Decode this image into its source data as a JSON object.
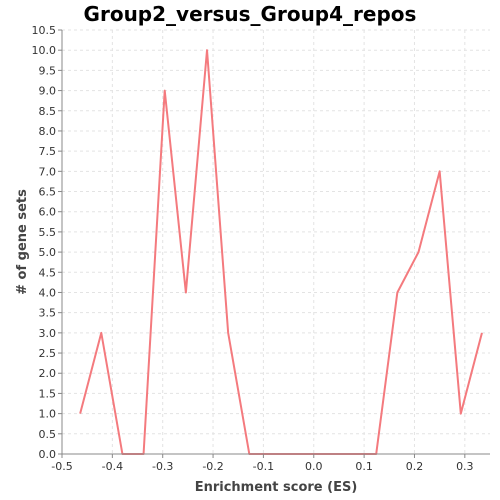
{
  "chart_data": {
    "type": "line",
    "title": "Group2_versus_Group4_repos",
    "xlabel": "Enrichment score (ES)",
    "ylabel": "# of gene sets",
    "xlim": [
      -0.5,
      0.35
    ],
    "ylim": [
      0.0,
      10.5
    ],
    "x_ticks": [
      "-0.5",
      "-0.4",
      "-0.3",
      "-0.2",
      "-0.1",
      "0.0",
      "0.1",
      "0.2",
      "0.3"
    ],
    "y_ticks": [
      "0.0",
      "0.5",
      "1.0",
      "1.5",
      "2.0",
      "2.5",
      "3.0",
      "3.5",
      "4.0",
      "4.5",
      "5.0",
      "5.5",
      "6.0",
      "6.5",
      "7.0",
      "7.5",
      "8.0",
      "8.5",
      "9.0",
      "9.5",
      "10.0",
      "10.5"
    ],
    "grid": true,
    "series": [
      {
        "color": "#f47a7e",
        "x": [
          -0.464,
          -0.422,
          -0.38,
          -0.338,
          -0.296,
          -0.254,
          -0.212,
          -0.17,
          -0.128,
          -0.086,
          -0.044,
          -0.002,
          0.04,
          0.082,
          0.124,
          0.166,
          0.208,
          0.25,
          0.292,
          0.334
        ],
        "y": [
          1,
          3,
          0,
          0,
          9,
          4,
          10,
          3,
          0,
          0,
          0,
          0,
          0,
          0,
          0,
          4,
          5,
          7,
          1,
          3
        ]
      }
    ]
  }
}
